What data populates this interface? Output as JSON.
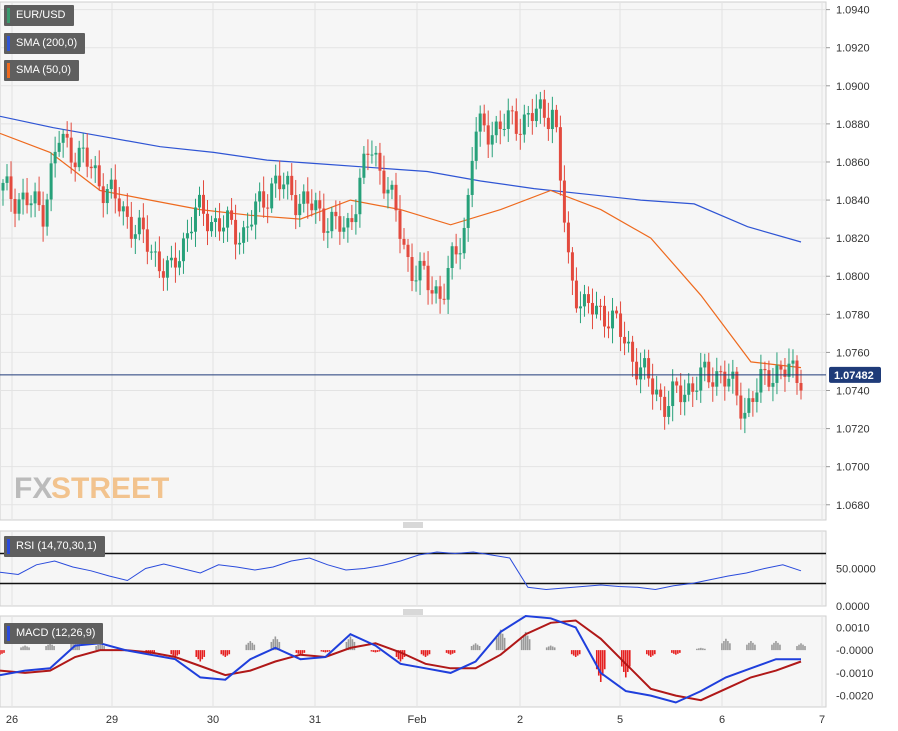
{
  "legends": {
    "main": [
      {
        "label": "EUR/USD",
        "color": "#3a9a6e"
      },
      {
        "label": "SMA (200,0)",
        "color": "#2f55d4"
      },
      {
        "label": "SMA (50,0)",
        "color": "#ee6a1e"
      }
    ],
    "rsi": {
      "label": "RSI (14,70,30,1)",
      "color": "#2a4bdc"
    },
    "macd": {
      "label": "MACD (12,26,9)",
      "color": "#2a4bdc"
    }
  },
  "watermark": {
    "fx": "FX",
    "street": "STREET"
  },
  "chart_data": [
    {
      "type": "candlestick",
      "name": "EUR/USD",
      "ylim": [
        1.0672,
        1.0944
      ],
      "price_ticks": [
        "1.0940",
        "1.0920",
        "1.0900",
        "1.0880",
        "1.0860",
        "1.0840",
        "1.0820",
        "1.0800",
        "1.0780",
        "1.0760",
        "1.0740",
        "1.0720",
        "1.0700",
        "1.0680"
      ],
      "current_price_label": "1.07482",
      "current_price": 1.07482,
      "x_labels": [
        "26",
        "29",
        "30",
        "31",
        "Feb",
        "2",
        "5",
        "6",
        "7"
      ],
      "grid": true,
      "colors": {
        "up": "#27a17a",
        "down": "#e34a3e",
        "sma200": "#2f55d4",
        "sma50": "#ee6a1e",
        "last": "#1f3b79"
      },
      "sma200": [
        1.0884,
        1.0878,
        1.0873,
        1.0868,
        1.0865,
        1.0861,
        1.0859,
        1.0857,
        1.0855,
        1.085,
        1.0846,
        1.0843,
        1.084,
        1.0838,
        1.0826,
        1.0818
      ],
      "sma50": [
        1.0875,
        1.0865,
        1.0845,
        1.084,
        1.0835,
        1.0832,
        1.083,
        1.084,
        1.0835,
        1.0827,
        1.0835,
        1.0845,
        1.0835,
        1.082,
        1.079,
        1.0755,
        1.0752
      ]
    },
    {
      "type": "line",
      "name": "RSI (14,70,30,1)",
      "ylim": [
        0,
        100
      ],
      "tick_labels": [
        "50.0000",
        "0.0000"
      ],
      "levels": [
        70,
        30
      ],
      "values": [
        45,
        42,
        55,
        60,
        52,
        47,
        40,
        34,
        50,
        56,
        50,
        44,
        55,
        52,
        48,
        52,
        60,
        64,
        55,
        48,
        50,
        54,
        60,
        68,
        72,
        70,
        72,
        68,
        64,
        25,
        22,
        24,
        26,
        28,
        26,
        25,
        22,
        27,
        30,
        35,
        40,
        44,
        50,
        55,
        47
      ]
    },
    {
      "type": "bar+line",
      "name": "MACD (12,26,9)",
      "ylim": [
        -0.0025,
        0.0015
      ],
      "tick_labels": [
        "0.0010",
        "-0.0000",
        "-0.0010",
        "-0.0020"
      ],
      "macd_line": [
        -0.0011,
        -0.0009,
        -0.0008,
        0.0002,
        0.0003,
        0.0,
        -0.0002,
        -0.0004,
        -0.0012,
        -0.0013,
        -0.0004,
        0.0001,
        -0.0004,
        -0.0003,
        0.0007,
        0.0002,
        -0.0006,
        -0.0008,
        -0.001,
        -0.0005,
        0.0008,
        0.0015,
        0.0014,
        0.001,
        -0.001,
        -0.0018,
        -0.002,
        -0.0023,
        -0.0018,
        -0.0012,
        -0.0008,
        -0.0004,
        -0.0004
      ],
      "signal_line": [
        -0.0009,
        -0.001,
        -0.0009,
        -0.0003,
        0.0,
        0.0,
        -0.0001,
        -0.0003,
        -0.0007,
        -0.0011,
        -0.0009,
        -0.0005,
        -0.0002,
        -0.0003,
        0.0001,
        0.0003,
        -0.0001,
        -0.0006,
        -0.0008,
        -0.0008,
        -0.0002,
        0.0007,
        0.0012,
        0.0013,
        0.0005,
        -0.0006,
        -0.0017,
        -0.002,
        -0.0022,
        -0.0017,
        -0.0012,
        -0.0009,
        -0.0005
      ],
      "histogram": [
        -0.0002,
        0.0002,
        0.0003,
        0.0005,
        0.0003,
        0.0,
        -0.0002,
        -0.0003,
        -0.0005,
        -0.0003,
        0.0004,
        0.0006,
        -0.0002,
        -0.0001,
        0.0006,
        -0.0001,
        -0.0005,
        -0.0003,
        -0.0002,
        0.0003,
        0.0009,
        0.0008,
        0.0002,
        -0.0003,
        -0.0014,
        -0.0012,
        -0.0003,
        -0.0002,
        0.0001,
        0.0005,
        0.0004,
        0.0004,
        0.0003
      ]
    }
  ]
}
